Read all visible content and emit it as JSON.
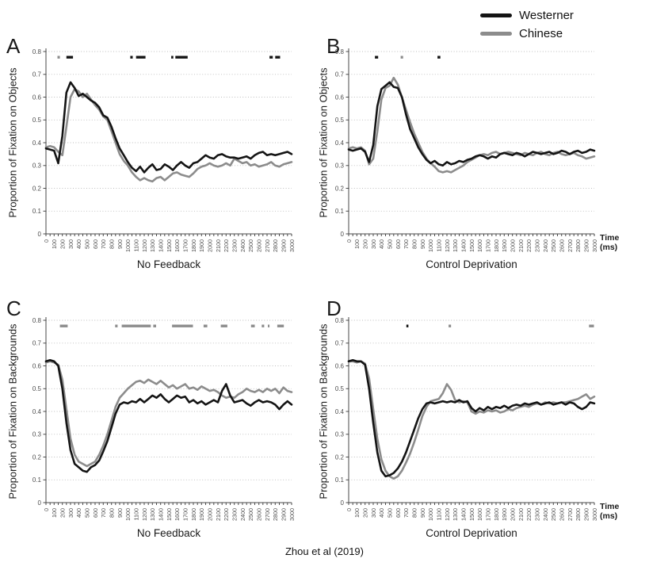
{
  "caption": "Zhou et al (2019)",
  "colors": {
    "westerner": "#141414",
    "chinese": "#8c8c8c",
    "grid": "#bdbdbd",
    "axis": "#4a4a4a",
    "tick_text": "#4d4d4d"
  },
  "legend": {
    "items": [
      {
        "label": "Westerner",
        "color": "#141414"
      },
      {
        "label": "Chinese",
        "color": "#8c8c8c"
      }
    ]
  },
  "axis": {
    "time_label_line1": "Time",
    "time_label_line2": "(ms)"
  },
  "chart_data": [
    {
      "id": "A",
      "type": "line",
      "letter": "A",
      "ylabel": "Proportion of Fixation on Objects",
      "xlabel": "No Feedback",
      "x_unit": "ms",
      "xlim": [
        0,
        3000
      ],
      "ylim": [
        0,
        0.8
      ],
      "y_tick_step": 0.1,
      "x_minor_step": 50,
      "x_label_step": 100,
      "x_step": 50,
      "grid": "dotted-horizontal",
      "show_time_label": false,
      "series": [
        {
          "name": "Westerner",
          "color": "#141414",
          "values": [
            0.375,
            0.37,
            0.365,
            0.31,
            0.43,
            0.62,
            0.665,
            0.64,
            0.605,
            0.615,
            0.6,
            0.585,
            0.575,
            0.555,
            0.52,
            0.51,
            0.47,
            0.42,
            0.375,
            0.345,
            0.315,
            0.29,
            0.275,
            0.295,
            0.27,
            0.29,
            0.305,
            0.28,
            0.285,
            0.305,
            0.295,
            0.28,
            0.3,
            0.315,
            0.3,
            0.29,
            0.31,
            0.315,
            0.33,
            0.345,
            0.335,
            0.33,
            0.345,
            0.35,
            0.34,
            0.335,
            0.335,
            0.33,
            0.335,
            0.34,
            0.33,
            0.345,
            0.355,
            0.36,
            0.345,
            0.35,
            0.345,
            0.35,
            0.355,
            0.36,
            0.35
          ]
        },
        {
          "name": "Chinese",
          "color": "#8c8c8c",
          "values": [
            0.38,
            0.385,
            0.38,
            0.36,
            0.345,
            0.47,
            0.6,
            0.635,
            0.625,
            0.6,
            0.615,
            0.59,
            0.565,
            0.545,
            0.515,
            0.5,
            0.45,
            0.4,
            0.35,
            0.32,
            0.3,
            0.27,
            0.25,
            0.235,
            0.245,
            0.235,
            0.23,
            0.245,
            0.25,
            0.235,
            0.25,
            0.265,
            0.27,
            0.26,
            0.255,
            0.25,
            0.265,
            0.285,
            0.295,
            0.3,
            0.31,
            0.3,
            0.295,
            0.3,
            0.31,
            0.3,
            0.33,
            0.32,
            0.31,
            0.315,
            0.3,
            0.305,
            0.295,
            0.3,
            0.305,
            0.315,
            0.3,
            0.295,
            0.305,
            0.31,
            0.315
          ]
        }
      ],
      "significance_markers": [
        {
          "color": "#8c8c8c",
          "y": 0.775,
          "segments_ms": [
            [
              140,
              170
            ]
          ]
        },
        {
          "color": "#141414",
          "y": 0.775,
          "segments_ms": [
            [
              250,
              330
            ],
            [
              1030,
              1060
            ],
            [
              1100,
              1215
            ],
            [
              1530,
              1555
            ],
            [
              1580,
              1730
            ],
            [
              2730,
              2770
            ],
            [
              2800,
              2860
            ]
          ]
        }
      ]
    },
    {
      "id": "B",
      "type": "line",
      "letter": "B",
      "ylabel": "Proportion of Fixation on Objects",
      "xlabel": "Control Deprivation",
      "x_unit": "ms",
      "xlim": [
        0,
        3000
      ],
      "ylim": [
        0,
        0.8
      ],
      "y_tick_step": 0.1,
      "x_minor_step": 50,
      "x_label_step": 100,
      "x_step": 50,
      "grid": "dotted-horizontal",
      "show_time_label": true,
      "series": [
        {
          "name": "Westerner",
          "color": "#141414",
          "values": [
            0.37,
            0.365,
            0.37,
            0.375,
            0.36,
            0.315,
            0.39,
            0.56,
            0.635,
            0.65,
            0.665,
            0.645,
            0.64,
            0.6,
            0.525,
            0.46,
            0.42,
            0.38,
            0.35,
            0.325,
            0.31,
            0.32,
            0.305,
            0.3,
            0.315,
            0.305,
            0.31,
            0.32,
            0.315,
            0.325,
            0.33,
            0.34,
            0.345,
            0.34,
            0.33,
            0.34,
            0.335,
            0.35,
            0.355,
            0.35,
            0.345,
            0.355,
            0.35,
            0.34,
            0.35,
            0.36,
            0.355,
            0.35,
            0.355,
            0.36,
            0.35,
            0.355,
            0.365,
            0.36,
            0.35,
            0.36,
            0.365,
            0.355,
            0.36,
            0.37,
            0.365
          ]
        },
        {
          "name": "Chinese",
          "color": "#8c8c8c",
          "values": [
            0.375,
            0.38,
            0.375,
            0.38,
            0.365,
            0.305,
            0.33,
            0.45,
            0.59,
            0.64,
            0.65,
            0.685,
            0.655,
            0.6,
            0.545,
            0.49,
            0.44,
            0.4,
            0.36,
            0.33,
            0.31,
            0.295,
            0.275,
            0.27,
            0.275,
            0.27,
            0.28,
            0.29,
            0.3,
            0.315,
            0.325,
            0.335,
            0.345,
            0.35,
            0.345,
            0.355,
            0.36,
            0.35,
            0.355,
            0.36,
            0.355,
            0.35,
            0.345,
            0.355,
            0.35,
            0.345,
            0.355,
            0.36,
            0.35,
            0.345,
            0.355,
            0.36,
            0.35,
            0.345,
            0.35,
            0.355,
            0.345,
            0.34,
            0.33,
            0.335,
            0.34
          ]
        }
      ],
      "significance_markers": [
        {
          "color": "#141414",
          "y": 0.775,
          "segments_ms": [
            [
              320,
              360
            ],
            [
              1085,
              1120
            ]
          ]
        },
        {
          "color": "#8c8c8c",
          "y": 0.775,
          "segments_ms": [
            [
              635,
              665
            ]
          ]
        }
      ]
    },
    {
      "id": "C",
      "type": "line",
      "letter": "C",
      "ylabel": "Proportion of Fixation on Backgrounds",
      "xlabel": "No Feedback",
      "x_unit": "ms",
      "xlim": [
        0,
        3000
      ],
      "ylim": [
        0,
        0.8
      ],
      "y_tick_step": 0.1,
      "x_minor_step": 50,
      "x_label_step": 100,
      "x_step": 50,
      "grid": "dotted-horizontal",
      "show_time_label": false,
      "series": [
        {
          "name": "Westerner",
          "color": "#141414",
          "values": [
            0.62,
            0.625,
            0.62,
            0.6,
            0.5,
            0.35,
            0.23,
            0.17,
            0.155,
            0.14,
            0.135,
            0.155,
            0.165,
            0.185,
            0.225,
            0.27,
            0.33,
            0.39,
            0.43,
            0.44,
            0.435,
            0.445,
            0.44,
            0.455,
            0.44,
            0.455,
            0.47,
            0.46,
            0.475,
            0.455,
            0.44,
            0.455,
            0.47,
            0.46,
            0.465,
            0.44,
            0.45,
            0.435,
            0.445,
            0.43,
            0.44,
            0.45,
            0.44,
            0.49,
            0.52,
            0.47,
            0.44,
            0.445,
            0.45,
            0.435,
            0.425,
            0.44,
            0.45,
            0.44,
            0.445,
            0.44,
            0.43,
            0.41,
            0.43,
            0.445,
            0.43
          ]
        },
        {
          "name": "Chinese",
          "color": "#8c8c8c",
          "values": [
            0.615,
            0.62,
            0.615,
            0.605,
            0.54,
            0.41,
            0.28,
            0.21,
            0.18,
            0.17,
            0.16,
            0.17,
            0.18,
            0.21,
            0.25,
            0.3,
            0.36,
            0.42,
            0.46,
            0.48,
            0.5,
            0.515,
            0.53,
            0.535,
            0.525,
            0.54,
            0.53,
            0.52,
            0.535,
            0.52,
            0.505,
            0.515,
            0.5,
            0.51,
            0.52,
            0.5,
            0.505,
            0.495,
            0.51,
            0.5,
            0.49,
            0.495,
            0.485,
            0.47,
            0.46,
            0.465,
            0.46,
            0.475,
            0.485,
            0.5,
            0.49,
            0.485,
            0.495,
            0.485,
            0.5,
            0.49,
            0.5,
            0.48,
            0.505,
            0.49,
            0.485
          ]
        }
      ],
      "significance_markers": [
        {
          "color": "#8c8c8c",
          "y": 0.775,
          "segments_ms": [
            [
              170,
              265
            ],
            [
              845,
              875
            ],
            [
              925,
              1280
            ],
            [
              1310,
              1345
            ],
            [
              1540,
              1795
            ],
            [
              1925,
              1970
            ],
            [
              2135,
              2215
            ],
            [
              2505,
              2550
            ],
            [
              2635,
              2665
            ],
            [
              2710,
              2730
            ],
            [
              2825,
              2905
            ]
          ]
        }
      ]
    },
    {
      "id": "D",
      "type": "line",
      "letter": "D",
      "ylabel": "Proportion of Fixation on Backgrounds",
      "xlabel": "Control Deprivation",
      "x_unit": "ms",
      "xlim": [
        0,
        3000
      ],
      "ylim": [
        0,
        0.8
      ],
      "y_tick_step": 0.1,
      "x_minor_step": 50,
      "x_label_step": 100,
      "x_step": 50,
      "grid": "dotted-horizontal",
      "show_time_label": true,
      "series": [
        {
          "name": "Westerner",
          "color": "#141414",
          "values": [
            0.62,
            0.625,
            0.62,
            0.62,
            0.605,
            0.5,
            0.35,
            0.22,
            0.14,
            0.115,
            0.12,
            0.13,
            0.15,
            0.18,
            0.22,
            0.27,
            0.32,
            0.37,
            0.41,
            0.435,
            0.44,
            0.435,
            0.44,
            0.445,
            0.44,
            0.445,
            0.44,
            0.45,
            0.44,
            0.445,
            0.415,
            0.4,
            0.415,
            0.405,
            0.42,
            0.41,
            0.42,
            0.415,
            0.425,
            0.415,
            0.425,
            0.43,
            0.425,
            0.435,
            0.43,
            0.435,
            0.44,
            0.43,
            0.435,
            0.44,
            0.43,
            0.435,
            0.44,
            0.43,
            0.44,
            0.435,
            0.42,
            0.41,
            0.42,
            0.44,
            0.435
          ]
        },
        {
          "name": "Chinese",
          "color": "#8c8c8c",
          "values": [
            0.62,
            0.62,
            0.615,
            0.62,
            0.61,
            0.545,
            0.41,
            0.28,
            0.19,
            0.14,
            0.115,
            0.105,
            0.115,
            0.14,
            0.175,
            0.215,
            0.265,
            0.32,
            0.38,
            0.42,
            0.445,
            0.45,
            0.455,
            0.48,
            0.52,
            0.495,
            0.45,
            0.44,
            0.445,
            0.44,
            0.4,
            0.39,
            0.4,
            0.395,
            0.405,
            0.4,
            0.405,
            0.395,
            0.4,
            0.41,
            0.405,
            0.415,
            0.42,
            0.425,
            0.42,
            0.43,
            0.435,
            0.43,
            0.44,
            0.435,
            0.44,
            0.435,
            0.44,
            0.44,
            0.445,
            0.45,
            0.455,
            0.465,
            0.475,
            0.455,
            0.465
          ]
        }
      ],
      "significance_markers": [
        {
          "color": "#141414",
          "y": 0.775,
          "segments_ms": [
            [
              705,
              730
            ]
          ]
        },
        {
          "color": "#8c8c8c",
          "y": 0.775,
          "segments_ms": [
            [
              1220,
              1250
            ],
            [
              2935,
              2995
            ]
          ]
        }
      ]
    }
  ]
}
